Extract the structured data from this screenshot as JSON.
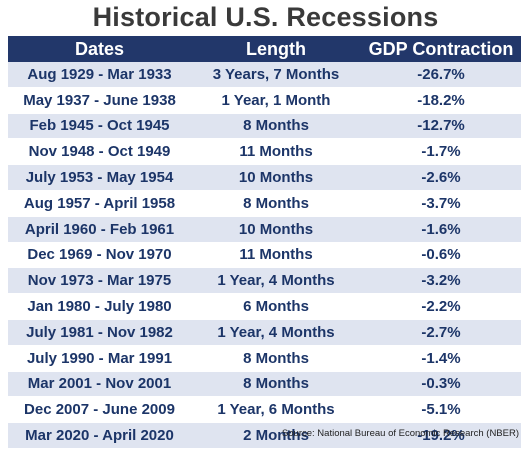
{
  "title": "Historical U.S. Recessions",
  "columns": [
    "Dates",
    "Length",
    "GDP Contraction"
  ],
  "rows": [
    [
      "Aug 1929 - Mar 1933",
      "3 Years, 7 Months",
      "-26.7%"
    ],
    [
      "May 1937 - June 1938",
      "1 Year, 1 Month",
      "-18.2%"
    ],
    [
      "Feb 1945 - Oct 1945",
      "8 Months",
      "-12.7%"
    ],
    [
      "Nov 1948 - Oct 1949",
      "11 Months",
      "-1.7%"
    ],
    [
      "July 1953 - May 1954",
      "10 Months",
      "-2.6%"
    ],
    [
      "Aug 1957 - April 1958",
      "8 Months",
      "-3.7%"
    ],
    [
      "April 1960 - Feb 1961",
      "10 Months",
      "-1.6%"
    ],
    [
      "Dec 1969 - Nov 1970",
      "11 Months",
      "-0.6%"
    ],
    [
      "Nov 1973 - Mar 1975",
      "1 Year, 4 Months",
      "-3.2%"
    ],
    [
      "Jan 1980 - July 1980",
      "6 Months",
      "-2.2%"
    ],
    [
      "July 1981 - Nov 1982",
      "1 Year, 4 Months",
      "-2.7%"
    ],
    [
      "July 1990 - Mar 1991",
      "8 Months",
      "-1.4%"
    ],
    [
      "Mar 2001 - Nov 2001",
      "8 Months",
      "-0.3%"
    ],
    [
      "Dec 2007 - June 2009",
      "1 Year, 6 Months",
      "-5.1%"
    ],
    [
      "Mar 2020 - April 2020",
      "2 Months",
      "-19.2%"
    ]
  ],
  "source": "Source: National Bureau of Economic Research (NBER)",
  "colors": {
    "header_bg": "#22376a",
    "stripe": "#dfe4f0",
    "text": "#1c3568"
  }
}
